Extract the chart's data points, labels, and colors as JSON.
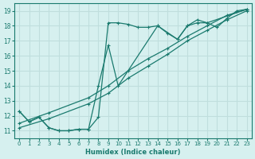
{
  "xlabel": "Humidex (Indice chaleur)",
  "bg_color": "#d6f0ef",
  "line_color": "#1a7a6e",
  "grid_color": "#c0dedd",
  "xlim": [
    -0.5,
    23.5
  ],
  "ylim": [
    10.5,
    19.5
  ],
  "xticks": [
    0,
    1,
    2,
    3,
    4,
    5,
    6,
    7,
    8,
    9,
    10,
    11,
    12,
    13,
    14,
    15,
    16,
    17,
    18,
    19,
    20,
    21,
    22,
    23
  ],
  "yticks": [
    11,
    12,
    13,
    14,
    15,
    16,
    17,
    18,
    19
  ],
  "lines": [
    {
      "x": [
        0,
        1,
        2,
        3,
        4,
        5,
        6,
        7,
        8,
        9,
        10,
        11,
        12,
        13,
        14,
        15,
        16,
        17,
        18,
        19,
        20,
        21,
        22,
        23
      ],
      "y": [
        12.3,
        11.6,
        11.9,
        11.2,
        11.0,
        11.0,
        11.1,
        11.1,
        11.9,
        18.2,
        18.2,
        18.1,
        17.9,
        17.9,
        18.0,
        17.5,
        17.1,
        18.0,
        18.2,
        18.2,
        17.9,
        18.5,
        19.0,
        19.1
      ]
    },
    {
      "x": [
        0,
        1,
        2,
        3,
        4,
        5,
        6,
        7,
        8,
        9,
        10,
        14,
        16,
        17,
        18,
        19,
        23
      ],
      "y": [
        12.3,
        11.6,
        11.9,
        11.2,
        11.0,
        11.0,
        11.1,
        11.1,
        14.0,
        16.7,
        14.0,
        18.0,
        17.1,
        18.0,
        18.4,
        18.2,
        19.1
      ]
    },
    {
      "x": [
        0,
        3,
        7,
        9,
        11,
        13,
        15,
        17,
        19,
        21,
        23
      ],
      "y": [
        11.5,
        12.2,
        13.2,
        14.0,
        15.0,
        15.8,
        16.5,
        17.3,
        18.0,
        18.7,
        19.1
      ]
    },
    {
      "x": [
        0,
        3,
        7,
        9,
        11,
        13,
        15,
        17,
        19,
        21,
        23
      ],
      "y": [
        11.2,
        11.8,
        12.8,
        13.5,
        14.5,
        15.3,
        16.1,
        17.0,
        17.7,
        18.4,
        19.0
      ]
    }
  ]
}
